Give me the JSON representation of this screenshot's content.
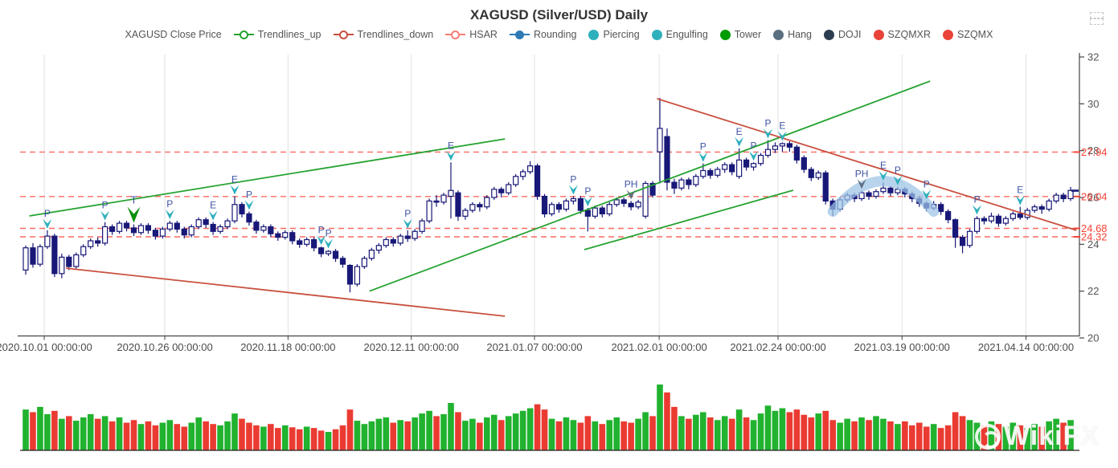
{
  "title": "XAGUSD (Silver/USD) Daily",
  "watermark": {
    "text": "WikiFX"
  },
  "toolbar": {
    "restore_icon": "restore"
  },
  "legend": {
    "position": "top",
    "items": [
      {
        "label": "XAGUSD Close Price",
        "icon": "none",
        "color": "#555555"
      },
      {
        "label": "Trendlines_up",
        "icon": "line-circle",
        "color": "#26a331"
      },
      {
        "label": "Trendlines_down",
        "icon": "line-circle",
        "color": "#c8503f"
      },
      {
        "label": "HSAR",
        "icon": "line-circle",
        "color": "#f87f77"
      },
      {
        "label": "Rounding",
        "icon": "line-dot",
        "color": "#2e7ab5"
      },
      {
        "label": "Piercing",
        "icon": "dot",
        "color": "#2fb0bd"
      },
      {
        "label": "Engulfing",
        "icon": "dot",
        "color": "#2fb0bd"
      },
      {
        "label": "Tower",
        "icon": "dot",
        "color": "#009b00"
      },
      {
        "label": "Hang",
        "icon": "dot",
        "color": "#5a6f80"
      },
      {
        "label": "DOJI",
        "icon": "dot",
        "color": "#2c3e50"
      },
      {
        "label": "SZQMXR",
        "icon": "dot",
        "color": "#e94339"
      },
      {
        "label": "SZQMX",
        "icon": "dot",
        "color": "#e94339"
      }
    ]
  },
  "chart_data": {
    "type": "candlestick",
    "title": "XAGUSD (Silver/USD) Daily",
    "ylim": [
      20,
      32
    ],
    "y_ticks": [
      20,
      22,
      24,
      26,
      28,
      30,
      32
    ],
    "x_axis_labels": [
      {
        "label": "2020.10.01 00:00:00",
        "i": 2.57
      },
      {
        "label": "2020.10.26 00:00:00",
        "i": 19.3
      },
      {
        "label": "2020.11.18 00:00:00",
        "i": 36.4
      },
      {
        "label": "2020.12.11 00:00:00",
        "i": 53.5
      },
      {
        "label": "2021.01.07 00:00:00",
        "i": 70.6
      },
      {
        "label": "2021.02.01 00:00:00",
        "i": 87.9
      },
      {
        "label": "2021.02.24 00:00:00",
        "i": 104.4
      },
      {
        "label": "2021.03.19 00:00:00",
        "i": 121.6
      },
      {
        "label": "2021.04.14 00:00:00",
        "i": 138.8
      }
    ],
    "hsar": {
      "levels": [
        27.94,
        26.04,
        24.68,
        24.32
      ],
      "labels": [
        "27.94",
        "26.04",
        "24.68",
        "24.32"
      ]
    },
    "last_price": {
      "value": 26.29
    },
    "trendlines_up": [
      {
        "i1": 0.5,
        "p1": 25.21,
        "i2": 66.5,
        "p2": 28.5
      },
      {
        "i1": 47.7,
        "p1": 22.0,
        "i2": 125.5,
        "p2": 30.97
      },
      {
        "i1": 77.5,
        "p1": 23.77,
        "i2": 106.5,
        "p2": 26.31
      }
    ],
    "trendlines_down": [
      {
        "i1": 5.6,
        "p1": 22.98,
        "i2": 66.5,
        "p2": 20.93
      },
      {
        "i1": 87.6,
        "p1": 30.22,
        "i2": 145.8,
        "p2": 24.6
      }
    ],
    "rounding_arc": {
      "i1": 112.0,
      "p1": 25.4,
      "i2": 126.0,
      "p2": 25.4,
      "ctrl_p": 28.0
    },
    "markers": [
      {
        "i": 3,
        "letter": "P",
        "kind": "piercing"
      },
      {
        "i": 11,
        "letter": "P",
        "kind": "piercing"
      },
      {
        "i": 15,
        "letter": "T",
        "kind": "tower"
      },
      {
        "i": 20,
        "letter": "P",
        "kind": "piercing"
      },
      {
        "i": 26,
        "letter": "E",
        "kind": "engulfing"
      },
      {
        "i": 29,
        "letter": "E",
        "kind": "engulfing"
      },
      {
        "i": 31,
        "letter": "P",
        "kind": "piercing"
      },
      {
        "i": 41,
        "letter": "P",
        "kind": "piercing"
      },
      {
        "i": 42,
        "letter": "P",
        "kind": "piercing"
      },
      {
        "i": 53,
        "letter": "P",
        "kind": "piercing"
      },
      {
        "i": 59,
        "letter": "E",
        "kind": "engulfing"
      },
      {
        "i": 76,
        "letter": "P",
        "kind": "piercing"
      },
      {
        "i": 78,
        "letter": "P",
        "kind": "piercing"
      },
      {
        "i": 84,
        "letter": "PH",
        "kind": "hang"
      },
      {
        "i": 94,
        "letter": "P",
        "kind": "piercing"
      },
      {
        "i": 99,
        "letter": "E",
        "kind": "engulfing"
      },
      {
        "i": 101,
        "letter": "P",
        "kind": "piercing"
      },
      {
        "i": 103,
        "letter": "P",
        "kind": "piercing"
      },
      {
        "i": 105,
        "letter": "E",
        "kind": "engulfing"
      },
      {
        "i": 116,
        "letter": "PH",
        "kind": "hang"
      },
      {
        "i": 119,
        "letter": "E",
        "kind": "engulfing"
      },
      {
        "i": 121,
        "letter": "P",
        "kind": "piercing"
      },
      {
        "i": 125,
        "letter": "P",
        "kind": "piercing"
      },
      {
        "i": 132,
        "letter": "P",
        "kind": "piercing"
      },
      {
        "i": 138,
        "letter": "E",
        "kind": "engulfing"
      }
    ],
    "candles": [
      [
        22.9,
        23.95,
        22.7,
        23.85
      ],
      [
        23.85,
        24.05,
        23.0,
        23.15
      ],
      [
        23.15,
        24.0,
        23.05,
        23.9
      ],
      [
        23.9,
        24.6,
        23.8,
        24.35
      ],
      [
        24.35,
        24.45,
        22.6,
        22.75
      ],
      [
        22.75,
        23.6,
        22.55,
        23.45
      ],
      [
        23.45,
        23.55,
        22.9,
        23.05
      ],
      [
        23.05,
        23.65,
        22.95,
        23.55
      ],
      [
        23.55,
        24.0,
        23.45,
        23.9
      ],
      [
        23.9,
        24.25,
        23.8,
        24.15
      ],
      [
        24.15,
        24.3,
        23.9,
        24.05
      ],
      [
        24.05,
        24.95,
        23.95,
        24.75
      ],
      [
        24.75,
        24.85,
        24.4,
        24.55
      ],
      [
        24.55,
        25.0,
        24.45,
        24.9
      ],
      [
        24.9,
        25.0,
        24.55,
        24.7
      ],
      [
        24.7,
        24.85,
        24.35,
        24.5
      ],
      [
        24.5,
        24.9,
        24.4,
        24.8
      ],
      [
        24.8,
        24.9,
        24.45,
        24.6
      ],
      [
        24.6,
        24.7,
        24.2,
        24.35
      ],
      [
        24.35,
        24.75,
        24.25,
        24.65
      ],
      [
        24.65,
        25.0,
        24.55,
        24.9
      ],
      [
        24.9,
        25.0,
        24.5,
        24.65
      ],
      [
        24.65,
        24.75,
        24.25,
        24.4
      ],
      [
        24.4,
        24.85,
        24.3,
        24.75
      ],
      [
        24.75,
        25.15,
        24.65,
        25.05
      ],
      [
        25.05,
        25.15,
        24.7,
        24.85
      ],
      [
        24.85,
        24.95,
        24.4,
        24.55
      ],
      [
        24.55,
        24.85,
        24.45,
        24.75
      ],
      [
        24.75,
        25.1,
        24.65,
        25.0
      ],
      [
        25.0,
        26.05,
        24.9,
        25.7
      ],
      [
        25.7,
        25.8,
        25.15,
        25.3
      ],
      [
        25.3,
        25.4,
        24.8,
        24.95
      ],
      [
        24.95,
        25.05,
        24.45,
        24.6
      ],
      [
        24.6,
        24.85,
        24.5,
        24.75
      ],
      [
        24.75,
        24.85,
        24.3,
        24.45
      ],
      [
        24.45,
        24.55,
        24.15,
        24.3
      ],
      [
        24.3,
        24.6,
        24.2,
        24.5
      ],
      [
        24.5,
        24.6,
        24.0,
        24.15
      ],
      [
        24.15,
        24.25,
        23.85,
        24.0
      ],
      [
        24.0,
        24.3,
        23.9,
        24.2
      ],
      [
        24.2,
        24.3,
        23.7,
        23.85
      ],
      [
        23.85,
        23.9,
        23.45,
        23.6
      ],
      [
        23.6,
        23.75,
        23.5,
        23.7
      ],
      [
        23.7,
        23.8,
        23.25,
        23.4
      ],
      [
        23.4,
        23.5,
        23.0,
        23.15
      ],
      [
        23.1,
        23.15,
        21.95,
        22.3
      ],
      [
        22.3,
        23.15,
        22.2,
        23.05
      ],
      [
        23.05,
        23.5,
        22.95,
        23.4
      ],
      [
        23.4,
        23.85,
        23.3,
        23.75
      ],
      [
        23.75,
        24.05,
        23.6,
        23.95
      ],
      [
        23.95,
        24.3,
        23.85,
        24.2
      ],
      [
        24.2,
        24.3,
        23.9,
        24.05
      ],
      [
        24.05,
        24.45,
        23.95,
        24.35
      ],
      [
        24.35,
        24.6,
        24.1,
        24.25
      ],
      [
        24.25,
        24.65,
        24.15,
        24.55
      ],
      [
        24.55,
        25.1,
        24.45,
        25.0
      ],
      [
        25.0,
        25.95,
        24.9,
        25.85
      ],
      [
        25.85,
        26.1,
        25.6,
        25.8
      ],
      [
        25.8,
        26.2,
        25.7,
        26.1
      ],
      [
        26.05,
        27.5,
        25.1,
        26.3
      ],
      [
        26.2,
        26.3,
        25.0,
        25.2
      ],
      [
        25.2,
        25.55,
        25.05,
        25.45
      ],
      [
        25.45,
        25.8,
        25.35,
        25.7
      ],
      [
        25.7,
        25.8,
        25.4,
        25.6
      ],
      [
        25.6,
        26.1,
        25.5,
        26.0
      ],
      [
        26.0,
        26.45,
        25.9,
        26.35
      ],
      [
        26.35,
        26.45,
        26.0,
        26.2
      ],
      [
        26.2,
        26.65,
        26.1,
        26.55
      ],
      [
        26.55,
        27.0,
        26.45,
        26.9
      ],
      [
        26.9,
        27.2,
        26.75,
        27.1
      ],
      [
        27.1,
        27.55,
        27.0,
        27.35
      ],
      [
        27.35,
        27.45,
        25.9,
        26.05
      ],
      [
        26.05,
        26.15,
        25.15,
        25.3
      ],
      [
        25.3,
        25.8,
        25.2,
        25.7
      ],
      [
        25.7,
        25.8,
        25.35,
        25.5
      ],
      [
        25.5,
        25.95,
        25.4,
        25.85
      ],
      [
        25.85,
        26.05,
        25.7,
        25.95
      ],
      [
        25.95,
        26.05,
        25.3,
        25.45
      ],
      [
        25.45,
        25.55,
        24.55,
        25.2
      ],
      [
        25.2,
        25.65,
        25.1,
        25.55
      ],
      [
        25.55,
        25.65,
        25.15,
        25.3
      ],
      [
        25.3,
        25.8,
        25.2,
        25.7
      ],
      [
        25.7,
        26.0,
        25.6,
        25.9
      ],
      [
        25.9,
        26.0,
        25.6,
        25.75
      ],
      [
        25.75,
        25.85,
        25.45,
        25.6
      ],
      [
        25.6,
        25.9,
        25.5,
        25.8
      ],
      [
        25.2,
        26.7,
        25.1,
        26.6
      ],
      [
        26.6,
        26.7,
        26.0,
        26.1
      ],
      [
        27.95,
        30.25,
        26.6,
        28.95
      ],
      [
        28.6,
        28.95,
        26.3,
        26.65
      ],
      [
        26.65,
        26.8,
        26.15,
        26.4
      ],
      [
        26.4,
        26.85,
        26.3,
        26.75
      ],
      [
        26.75,
        26.85,
        26.35,
        26.55
      ],
      [
        26.55,
        27.0,
        26.45,
        26.9
      ],
      [
        26.9,
        27.45,
        26.8,
        27.15
      ],
      [
        27.15,
        27.25,
        26.8,
        26.95
      ],
      [
        26.95,
        27.3,
        26.85,
        27.2
      ],
      [
        27.2,
        27.5,
        27.05,
        27.4
      ],
      [
        27.4,
        27.5,
        26.95,
        27.1
      ],
      [
        26.9,
        28.1,
        26.8,
        27.6
      ],
      [
        27.6,
        27.7,
        27.15,
        27.3
      ],
      [
        27.3,
        27.5,
        27.15,
        27.45
      ],
      [
        27.45,
        27.9,
        27.35,
        27.8
      ],
      [
        27.8,
        28.45,
        27.7,
        28.05
      ],
      [
        28.05,
        28.35,
        27.9,
        28.2
      ],
      [
        28.2,
        28.35,
        27.95,
        28.3
      ],
      [
        28.3,
        28.4,
        27.95,
        28.15
      ],
      [
        28.15,
        28.25,
        27.45,
        27.6
      ],
      [
        27.7,
        27.8,
        27.05,
        27.2
      ],
      [
        27.2,
        27.3,
        26.7,
        26.85
      ],
      [
        26.85,
        27.15,
        26.75,
        27.05
      ],
      [
        27.05,
        27.15,
        25.7,
        25.85
      ],
      [
        25.85,
        25.95,
        25.2,
        25.5
      ],
      [
        25.5,
        26.0,
        25.4,
        25.9
      ],
      [
        25.9,
        26.2,
        25.8,
        26.1
      ],
      [
        26.1,
        26.2,
        25.8,
        25.95
      ],
      [
        25.95,
        26.3,
        25.85,
        26.2
      ],
      [
        26.2,
        26.3,
        25.9,
        26.05
      ],
      [
        26.05,
        26.35,
        25.95,
        26.25
      ],
      [
        26.25,
        26.65,
        26.15,
        26.4
      ],
      [
        26.4,
        26.5,
        26.05,
        26.2
      ],
      [
        26.2,
        26.45,
        26.1,
        26.35
      ],
      [
        26.35,
        26.45,
        26.0,
        26.15
      ],
      [
        26.15,
        26.25,
        25.8,
        25.95
      ],
      [
        25.95,
        26.05,
        25.6,
        25.75
      ],
      [
        25.75,
        25.85,
        25.4,
        25.55
      ],
      [
        25.55,
        25.85,
        25.45,
        25.7
      ],
      [
        25.7,
        25.8,
        25.25,
        25.4
      ],
      [
        25.4,
        25.5,
        24.9,
        25.05
      ],
      [
        25.05,
        25.1,
        23.85,
        24.3
      ],
      [
        24.3,
        24.4,
        23.62,
        23.95
      ],
      [
        23.95,
        24.65,
        23.85,
        24.55
      ],
      [
        24.55,
        25.2,
        24.45,
        25.1
      ],
      [
        25.1,
        25.2,
        24.85,
        25.0
      ],
      [
        25.0,
        25.35,
        24.9,
        25.2
      ],
      [
        25.2,
        25.3,
        24.75,
        24.9
      ],
      [
        24.9,
        25.2,
        24.8,
        25.1
      ],
      [
        25.1,
        25.4,
        25.0,
        25.3
      ],
      [
        25.3,
        25.6,
        25.05,
        25.15
      ],
      [
        25.15,
        25.55,
        25.05,
        25.45
      ],
      [
        25.45,
        25.7,
        25.35,
        25.6
      ],
      [
        25.6,
        25.7,
        25.3,
        25.5
      ],
      [
        25.5,
        25.95,
        25.4,
        25.85
      ],
      [
        25.85,
        26.2,
        25.75,
        26.1
      ],
      [
        26.1,
        26.2,
        25.8,
        25.95
      ],
      [
        25.95,
        26.45,
        25.85,
        26.3
      ]
    ],
    "volumes": [
      0.62,
      0.58,
      0.66,
      0.55,
      0.6,
      0.48,
      0.52,
      0.45,
      0.5,
      0.55,
      0.48,
      0.52,
      0.44,
      0.5,
      0.42,
      0.46,
      0.4,
      0.44,
      0.38,
      0.42,
      0.46,
      0.4,
      0.36,
      0.42,
      0.5,
      0.44,
      0.4,
      0.38,
      0.44,
      0.56,
      0.48,
      0.42,
      0.38,
      0.36,
      0.4,
      0.34,
      0.38,
      0.35,
      0.32,
      0.36,
      0.34,
      0.3,
      0.28,
      0.32,
      0.38,
      0.62,
      0.45,
      0.4,
      0.44,
      0.48,
      0.5,
      0.42,
      0.46,
      0.44,
      0.5,
      0.56,
      0.6,
      0.52,
      0.55,
      0.72,
      0.58,
      0.45,
      0.48,
      0.42,
      0.5,
      0.54,
      0.46,
      0.52,
      0.56,
      0.6,
      0.64,
      0.7,
      0.62,
      0.48,
      0.44,
      0.5,
      0.46,
      0.42,
      0.52,
      0.44,
      0.4,
      0.46,
      0.5,
      0.44,
      0.42,
      0.48,
      0.58,
      0.52,
      1.0,
      0.88,
      0.66,
      0.52,
      0.48,
      0.54,
      0.58,
      0.5,
      0.46,
      0.52,
      0.48,
      0.62,
      0.5,
      0.46,
      0.56,
      0.68,
      0.6,
      0.64,
      0.58,
      0.62,
      0.54,
      0.5,
      0.56,
      0.6,
      0.46,
      0.42,
      0.48,
      0.44,
      0.5,
      0.46,
      0.52,
      0.48,
      0.44,
      0.4,
      0.44,
      0.38,
      0.42,
      0.36,
      0.4,
      0.34,
      0.38,
      0.58,
      0.52,
      0.46,
      0.42,
      0.38,
      0.44,
      0.4,
      0.36,
      0.42,
      0.38,
      0.34,
      0.4,
      0.36,
      0.44,
      0.48,
      0.42,
      0.46
    ],
    "colors": {
      "candle": "#181878",
      "vol_up": "#21b22f",
      "vol_down": "#ea3b32",
      "hsar_line": "#fb6a63",
      "hsar_label": "#f44336",
      "trend_up": "#26a331",
      "trend_down": "#c8503f",
      "grid": "#e0e0e0",
      "axis": "#444444",
      "tick_text": "#555555",
      "marker_letter": "#4053a3",
      "piercing": "#2fb0bd",
      "tower": "#0b8f0b",
      "hang": "#5c6e7e",
      "rounding_arc": "#9dc3e6"
    }
  }
}
